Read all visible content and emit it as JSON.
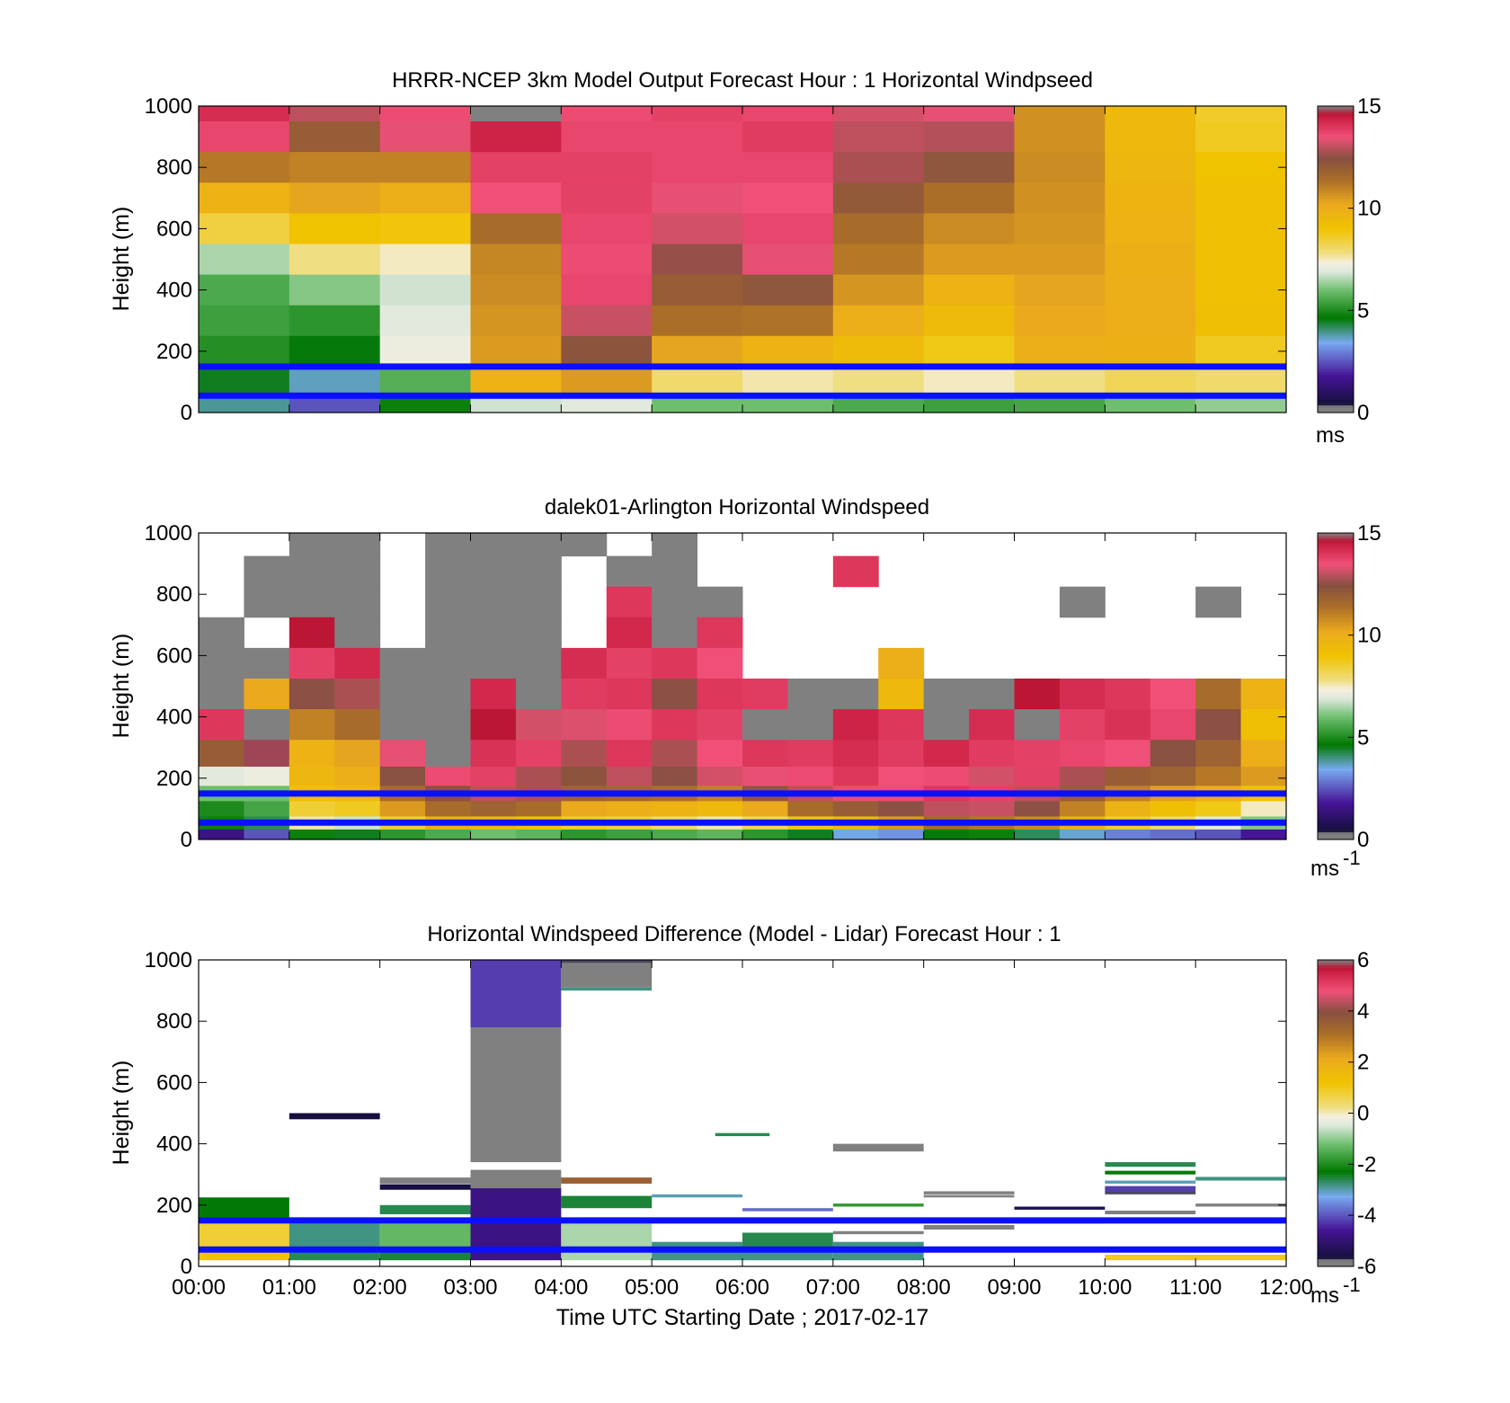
{
  "figure": {
    "xlabel": "Time UTC  Starting Date ; 2017-02-17",
    "x_ticks": [
      "00:00",
      "01:00",
      "02:00",
      "03:00",
      "04:00",
      "05:00",
      "06:00",
      "07:00",
      "08:00",
      "09:00",
      "10:00",
      "11:00",
      "12:00"
    ]
  },
  "chart_data": [
    {
      "type": "heatmap",
      "title": "HRRR-NCEP 3km Model Output   Forecast Hour : 1 Horizontal Windpseed",
      "ylabel": "Height (m)",
      "y_ticks": [
        "0",
        "200",
        "400",
        "600",
        "800",
        "1000"
      ],
      "ylim": [
        0,
        1000
      ],
      "xlim_hours": [
        0,
        12
      ],
      "colorbar": {
        "min": 0,
        "max": 15,
        "ticks": [
          "0",
          "5",
          "10",
          "15"
        ],
        "unit": "ms",
        "unit_exp": ""
      },
      "reference_lines_m": [
        150,
        55
      ],
      "x_hours": [
        0,
        1,
        2,
        3,
        4,
        5,
        6,
        7,
        8,
        9,
        10,
        11
      ],
      "heights_m": [
        1000,
        900,
        800,
        700,
        600,
        500,
        400,
        300,
        200,
        100,
        0
      ],
      "values": [
        [
          14.2,
          13.0,
          13.6,
          15.0,
          13.6,
          13.8,
          13.7,
          13.2,
          13.4,
          10.7,
          9.5,
          8.6
        ],
        [
          13.7,
          12.0,
          13.4,
          14.4,
          13.7,
          13.7,
          13.9,
          13.0,
          12.9,
          10.7,
          9.5,
          8.7
        ],
        [
          11.2,
          11.0,
          11.0,
          13.8,
          13.8,
          13.7,
          13.7,
          12.8,
          12.2,
          10.8,
          9.6,
          9.0
        ],
        [
          9.8,
          10.3,
          10.0,
          13.5,
          13.8,
          13.4,
          13.5,
          12.1,
          11.4,
          10.7,
          9.7,
          9.1
        ],
        [
          8.4,
          9.0,
          8.9,
          11.5,
          13.7,
          13.2,
          13.7,
          11.5,
          10.8,
          10.6,
          9.8,
          9.1
        ],
        [
          6.5,
          7.8,
          7.5,
          10.9,
          13.6,
          12.6,
          13.4,
          11.2,
          10.5,
          10.5,
          9.9,
          9.1
        ],
        [
          5.6,
          6.2,
          6.8,
          10.8,
          13.7,
          12.0,
          12.2,
          10.6,
          9.8,
          10.3,
          10.0,
          9.1
        ],
        [
          5.4,
          5.2,
          7.0,
          10.6,
          13.1,
          11.4,
          11.3,
          10.0,
          9.4,
          10.2,
          10.0,
          9.2
        ],
        [
          5.1,
          4.6,
          7.2,
          10.5,
          12.3,
          10.3,
          9.8,
          9.4,
          8.8,
          10.0,
          9.9,
          8.7
        ],
        [
          4.5,
          3.7,
          5.7,
          9.8,
          10.5,
          8.0,
          7.6,
          7.8,
          7.5,
          7.8,
          8.2,
          8.0
        ],
        [
          3.9,
          2.5,
          4.8,
          6.8,
          7.0,
          6.0,
          6.0,
          5.6,
          5.4,
          5.5,
          6.0,
          6.3
        ]
      ]
    },
    {
      "type": "heatmap",
      "title": "dalek01-Arlington  Horizontal Windspeed",
      "ylabel": "Height (m)",
      "y_ticks": [
        "0",
        "200",
        "400",
        "600",
        "800",
        "1000"
      ],
      "ylim": [
        0,
        1000
      ],
      "xlim_hours": [
        0,
        12
      ],
      "colorbar": {
        "min": 0,
        "max": 15,
        "ticks": [
          "0",
          "5",
          "10",
          "15"
        ],
        "unit": "ms",
        "unit_exp": "-1"
      },
      "reference_lines_m": [
        150,
        55
      ],
      "x_hours": [
        0,
        0.5,
        1,
        1.5,
        2,
        2.5,
        3,
        3.5,
        4,
        4.5,
        5,
        5.5,
        6,
        6.5,
        7,
        7.5,
        8,
        8.5,
        9,
        9.5,
        10,
        10.5,
        11,
        11.5
      ],
      "heights_m": [
        975,
        875,
        775,
        675,
        575,
        475,
        375,
        275,
        200,
        150,
        100,
        50,
        15
      ],
      "values": [
        [
          null,
          null,
          15.5,
          15.5,
          null,
          15.5,
          15.5,
          15.5,
          15.5,
          null,
          15.5,
          null,
          null,
          null,
          null,
          null,
          null,
          null,
          null,
          null,
          null,
          null,
          null,
          null
        ],
        [
          null,
          15.5,
          15.5,
          15.5,
          null,
          15.5,
          15.5,
          15.5,
          null,
          15.0,
          15.5,
          null,
          null,
          null,
          14.0,
          null,
          null,
          null,
          null,
          null,
          null,
          null,
          null,
          null
        ],
        [
          null,
          15.5,
          15.5,
          15.5,
          null,
          15.5,
          15.5,
          15.5,
          null,
          14.0,
          15.5,
          15.5,
          null,
          null,
          null,
          null,
          null,
          null,
          null,
          15.5,
          null,
          null,
          15.5,
          null
        ],
        [
          15.5,
          null,
          14.6,
          15.5,
          null,
          15.5,
          15.5,
          15.5,
          null,
          14.3,
          15.5,
          14.0,
          null,
          null,
          null,
          null,
          null,
          null,
          null,
          null,
          null,
          null,
          null,
          null
        ],
        [
          15.5,
          15.5,
          13.8,
          14.3,
          15.5,
          15.5,
          15.5,
          15.5,
          14.2,
          13.8,
          14.0,
          13.5,
          null,
          null,
          null,
          10.0,
          null,
          null,
          null,
          null,
          null,
          null,
          null,
          null
        ],
        [
          15.5,
          10.2,
          12.5,
          12.8,
          15.5,
          15.5,
          14.3,
          15.5,
          13.9,
          14.0,
          12.5,
          14.0,
          13.9,
          15.5,
          15.5,
          9.5,
          15.5,
          15.5,
          14.6,
          14.2,
          14.0,
          13.5,
          11.5,
          9.8
        ],
        [
          14.0,
          15.5,
          11.0,
          11.5,
          15.5,
          15.5,
          14.6,
          13.2,
          13.3,
          13.6,
          14.0,
          13.8,
          15.5,
          15.5,
          14.4,
          14.0,
          15.5,
          14.2,
          15.5,
          13.8,
          14.1,
          13.7,
          12.5,
          9.2
        ],
        [
          12.0,
          14.8,
          9.8,
          10.3,
          13.4,
          15.5,
          14.1,
          13.8,
          12.8,
          14.0,
          12.8,
          13.5,
          14.0,
          13.9,
          14.2,
          13.9,
          14.3,
          13.9,
          13.8,
          13.7,
          13.5,
          12.4,
          11.8,
          10.0
        ],
        [
          7.0,
          7.2,
          9.6,
          10.0,
          12.4,
          13.6,
          13.8,
          12.8,
          12.3,
          13.0,
          12.5,
          13.2,
          13.4,
          13.6,
          14.0,
          13.5,
          13.6,
          13.2,
          13.8,
          12.8,
          12.0,
          11.8,
          11.2,
          10.5
        ],
        [
          6.0,
          6.0,
          9.2,
          9.5,
          11.5,
          12.5,
          13.0,
          12.8,
          11.8,
          11.6,
          11.4,
          11.0,
          12.2,
          13.0,
          13.4,
          13.6,
          14.0,
          13.8,
          13.0,
          12.0,
          11.0,
          10.4,
          10.0,
          9.0
        ],
        [
          5.0,
          5.5,
          8.5,
          8.7,
          10.5,
          11.5,
          11.8,
          11.5,
          10.2,
          10.0,
          9.8,
          9.5,
          10.2,
          11.5,
          12.0,
          12.5,
          13.0,
          13.1,
          12.5,
          11.0,
          9.8,
          9.2,
          8.8,
          7.5
        ],
        [
          4.8,
          4.2,
          7.6,
          6.8,
          8.5,
          9.8,
          9.5,
          9.0,
          8.6,
          8.4,
          8.0,
          7.6,
          8.2,
          8.8,
          9.5,
          10.5,
          11.5,
          11.2,
          10.8,
          9.8,
          8.6,
          8.0,
          7.0,
          6.2
        ],
        [
          1.5,
          2.5,
          4.8,
          4.5,
          5.2,
          5.6,
          6.0,
          5.8,
          5.2,
          5.4,
          5.6,
          5.8,
          5.2,
          4.5,
          3.5,
          3.2,
          4.6,
          4.8,
          4.2,
          3.6,
          3.0,
          2.8,
          2.5,
          1.8
        ]
      ]
    },
    {
      "type": "heatmap",
      "title": "Horizontal Windspeed Difference (Model - Lidar) Forecast Hour : 1",
      "ylabel": "Height (m)",
      "y_ticks": [
        "0",
        "200",
        "400",
        "600",
        "800",
        "1000"
      ],
      "ylim": [
        0,
        1000
      ],
      "xlim_hours": [
        0,
        12
      ],
      "colorbar": {
        "min": -6,
        "max": 6,
        "ticks": [
          "-6",
          "-4",
          "-2",
          "0",
          "2",
          "4",
          "6"
        ],
        "unit": "ms",
        "unit_exp": "-1"
      },
      "reference_lines_m": [
        150,
        55
      ],
      "strips": [
        {
          "x_start": 3,
          "x_end": 4,
          "y_bottom": 780,
          "y_top": 1000,
          "value": -4.2
        },
        {
          "x_start": 3,
          "x_end": 4,
          "y_bottom": 340,
          "y_top": 780,
          "value": -6.5
        },
        {
          "x_start": 3,
          "x_end": 4,
          "y_bottom": 255,
          "y_top": 315,
          "value": -6.5
        },
        {
          "x_start": 3,
          "x_end": 4,
          "y_bottom": 20,
          "y_top": 255,
          "value": -4.8
        },
        {
          "x_start": 4,
          "x_end": 5,
          "y_bottom": 990,
          "y_top": 1000,
          "value": -5.7
        },
        {
          "x_start": 4,
          "x_end": 5,
          "y_bottom": 910,
          "y_top": 990,
          "value": -6.5
        },
        {
          "x_start": 4,
          "x_end": 5,
          "y_bottom": 900,
          "y_top": 910,
          "value": -2.8
        },
        {
          "x_start": 4,
          "x_end": 5,
          "y_bottom": 270,
          "y_top": 290,
          "value": 3.5
        },
        {
          "x_start": 4,
          "x_end": 5,
          "y_bottom": 190,
          "y_top": 230,
          "value": -2.5
        },
        {
          "x_start": 4,
          "x_end": 5,
          "y_bottom": 20,
          "y_top": 140,
          "value": -0.8
        },
        {
          "x_start": 1,
          "x_end": 2,
          "y_bottom": 480,
          "y_top": 500,
          "value": -5.6
        },
        {
          "x_start": 0,
          "x_end": 1,
          "y_bottom": 160,
          "y_top": 225,
          "value": -2.3
        },
        {
          "x_start": 0,
          "x_end": 1,
          "y_bottom": 60,
          "y_top": 140,
          "value": 0.8
        },
        {
          "x_start": 0,
          "x_end": 1,
          "y_bottom": 20,
          "y_top": 55,
          "value": 1.2
        },
        {
          "x_start": 1,
          "x_end": 2,
          "y_bottom": 60,
          "y_top": 140,
          "value": -2.8
        },
        {
          "x_start": 1,
          "x_end": 2,
          "y_bottom": 20,
          "y_top": 55,
          "value": -2.6
        },
        {
          "x_start": 2,
          "x_end": 3,
          "y_bottom": 270,
          "y_top": 290,
          "value": -6.5
        },
        {
          "x_start": 2,
          "x_end": 3,
          "y_bottom": 250,
          "y_top": 268,
          "value": -5.6
        },
        {
          "x_start": 2,
          "x_end": 3,
          "y_bottom": 170,
          "y_top": 200,
          "value": -2.6
        },
        {
          "x_start": 2,
          "x_end": 3,
          "y_bottom": 60,
          "y_top": 140,
          "value": -1.3
        },
        {
          "x_start": 2,
          "x_end": 3,
          "y_bottom": 20,
          "y_top": 55,
          "value": -2.5
        },
        {
          "x_start": 5,
          "x_end": 6,
          "y_bottom": 225,
          "y_top": 235,
          "value": -3.0
        },
        {
          "x_start": 5,
          "x_end": 6,
          "y_bottom": 20,
          "y_top": 80,
          "value": -2.8
        },
        {
          "x_start": 5.7,
          "x_end": 6.3,
          "y_bottom": 425,
          "y_top": 435,
          "value": -2.6
        },
        {
          "x_start": 6,
          "x_end": 7,
          "y_bottom": 180,
          "y_top": 190,
          "value": -3.8
        },
        {
          "x_start": 6,
          "x_end": 7,
          "y_bottom": 60,
          "y_top": 110,
          "value": -2.6
        },
        {
          "x_start": 6,
          "x_end": 7,
          "y_bottom": 20,
          "y_top": 55,
          "value": -2.8
        },
        {
          "x_start": 7,
          "x_end": 8,
          "y_bottom": 375,
          "y_top": 400,
          "value": -6.5
        },
        {
          "x_start": 7,
          "x_end": 8,
          "y_bottom": 195,
          "y_top": 205,
          "value": -1.8
        },
        {
          "x_start": 7,
          "x_end": 8,
          "y_bottom": 105,
          "y_top": 115,
          "value": -5.8
        },
        {
          "x_start": 7,
          "x_end": 8,
          "y_bottom": 20,
          "y_top": 80,
          "value": -2.8
        },
        {
          "x_start": 8,
          "x_end": 9,
          "y_bottom": 235,
          "y_top": 245,
          "value": -5.8
        },
        {
          "x_start": 8,
          "x_end": 9,
          "y_bottom": 225,
          "y_top": 233,
          "value": -6.5
        },
        {
          "x_start": 8,
          "x_end": 9,
          "y_bottom": 120,
          "y_top": 135,
          "value": -6.5
        },
        {
          "x_start": 9,
          "x_end": 10,
          "y_bottom": 185,
          "y_top": 195,
          "value": -5.4
        },
        {
          "x_start": 9,
          "x_end": 10,
          "y_bottom": 140,
          "y_top": 150,
          "value": -6.5
        },
        {
          "x_start": 10,
          "x_end": 11,
          "y_bottom": 325,
          "y_top": 340,
          "value": -2.6
        },
        {
          "x_start": 10,
          "x_end": 11,
          "y_bottom": 300,
          "y_top": 312,
          "value": -2.3
        },
        {
          "x_start": 10,
          "x_end": 11,
          "y_bottom": 270,
          "y_top": 280,
          "value": -3.0
        },
        {
          "x_start": 10,
          "x_end": 11,
          "y_bottom": 245,
          "y_top": 262,
          "value": -4.2
        },
        {
          "x_start": 10,
          "x_end": 11,
          "y_bottom": 235,
          "y_top": 245,
          "value": -5.7
        },
        {
          "x_start": 10,
          "x_end": 11,
          "y_bottom": 170,
          "y_top": 182,
          "value": -6.5
        },
        {
          "x_start": 10,
          "x_end": 12,
          "y_bottom": 20,
          "y_top": 38,
          "value": 1.0
        },
        {
          "x_start": 11,
          "x_end": 12,
          "y_bottom": 280,
          "y_top": 292,
          "value": -2.8
        },
        {
          "x_start": 11,
          "x_end": 12,
          "y_bottom": 195,
          "y_top": 205,
          "value": -5.8
        }
      ]
    }
  ]
}
